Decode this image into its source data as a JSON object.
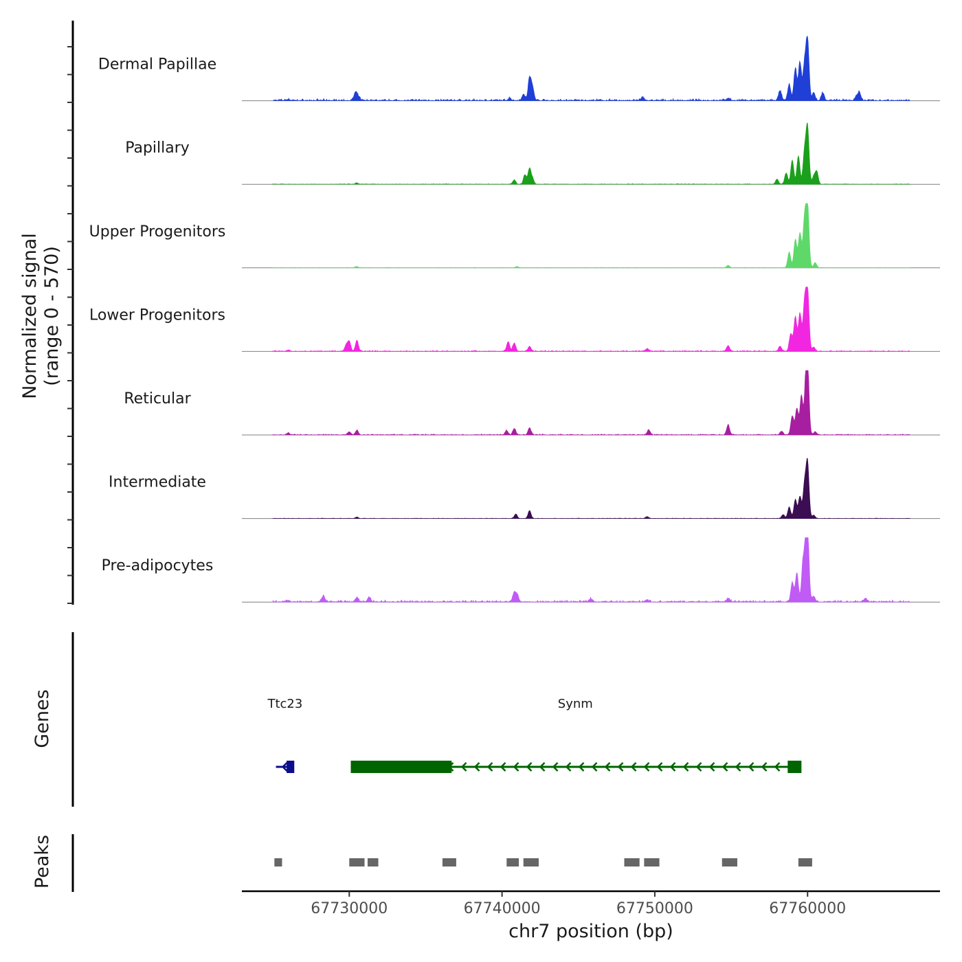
{
  "chart_data": {
    "type": "area",
    "title": "",
    "ylabel_lines": [
      "Normalized signal",
      "(range 0 - 570)"
    ],
    "signal_range": [
      0,
      570
    ],
    "xlabel": "chr7 position (bp)",
    "xlim": [
      67722970,
      67768670
    ],
    "x_ticks": [
      {
        "value": 67730000,
        "label": "67730000"
      },
      {
        "value": 67740000,
        "label": "67740000"
      },
      {
        "value": 67750000,
        "label": "67750000"
      },
      {
        "value": 67760000,
        "label": "67760000"
      }
    ],
    "tracks": [
      {
        "name": "Dermal Papillae",
        "color": "#1f3fd6",
        "peaks": [
          [
            67726000,
            0.02
          ],
          [
            67730400,
            0.12
          ],
          [
            67730600,
            0.06
          ],
          [
            67740500,
            0.04
          ],
          [
            67741400,
            0.1
          ],
          [
            67741800,
            0.35
          ],
          [
            67742000,
            0.2
          ],
          [
            67749200,
            0.05
          ],
          [
            67754800,
            0.04
          ],
          [
            67758200,
            0.15
          ],
          [
            67758800,
            0.26
          ],
          [
            67759200,
            0.5
          ],
          [
            67759500,
            0.6
          ],
          [
            67759800,
            0.55
          ],
          [
            67760000,
            0.97
          ],
          [
            67760400,
            0.12
          ],
          [
            67761000,
            0.12
          ],
          [
            67763200,
            0.07
          ],
          [
            67763400,
            0.12
          ]
        ],
        "noise": 0.035
      },
      {
        "name": "Papillary",
        "color": "#1aa01a",
        "peaks": [
          [
            67730500,
            0.02
          ],
          [
            67740800,
            0.07
          ],
          [
            67741500,
            0.15
          ],
          [
            67741800,
            0.25
          ],
          [
            67742000,
            0.08
          ],
          [
            67758000,
            0.08
          ],
          [
            67758600,
            0.18
          ],
          [
            67759000,
            0.38
          ],
          [
            67759400,
            0.45
          ],
          [
            67759800,
            0.5
          ],
          [
            67760000,
            0.9
          ],
          [
            67760400,
            0.12
          ],
          [
            67760600,
            0.2
          ]
        ],
        "noise": 0.012
      },
      {
        "name": "Upper Progenitors",
        "color": "#5fd86a",
        "peaks": [
          [
            67730500,
            0.02
          ],
          [
            67741000,
            0.02
          ],
          [
            67754800,
            0.04
          ],
          [
            67758800,
            0.25
          ],
          [
            67759200,
            0.45
          ],
          [
            67759500,
            0.55
          ],
          [
            67759800,
            0.75
          ],
          [
            67760000,
            1.0
          ],
          [
            67760500,
            0.08
          ]
        ],
        "noise": 0.01
      },
      {
        "name": "Lower Progenitors",
        "color": "#f226e0",
        "peaks": [
          [
            67726000,
            0.02
          ],
          [
            67729800,
            0.1
          ],
          [
            67730000,
            0.15
          ],
          [
            67730500,
            0.17
          ],
          [
            67740400,
            0.15
          ],
          [
            67740800,
            0.13
          ],
          [
            67741800,
            0.08
          ],
          [
            67749500,
            0.04
          ],
          [
            67754800,
            0.09
          ],
          [
            67758200,
            0.08
          ],
          [
            67758900,
            0.28
          ],
          [
            67759200,
            0.55
          ],
          [
            67759500,
            0.6
          ],
          [
            67759800,
            0.75
          ],
          [
            67760000,
            0.98
          ],
          [
            67760400,
            0.07
          ]
        ],
        "noise": 0.02
      },
      {
        "name": "Reticular",
        "color": "#a81ea0",
        "peaks": [
          [
            67726000,
            0.03
          ],
          [
            67730000,
            0.05
          ],
          [
            67730500,
            0.07
          ],
          [
            67740300,
            0.07
          ],
          [
            67740800,
            0.1
          ],
          [
            67741800,
            0.11
          ],
          [
            67749600,
            0.08
          ],
          [
            67754800,
            0.16
          ],
          [
            67758300,
            0.06
          ],
          [
            67759000,
            0.3
          ],
          [
            67759300,
            0.42
          ],
          [
            67759600,
            0.62
          ],
          [
            67759900,
            0.75
          ],
          [
            67760000,
            0.98
          ],
          [
            67760500,
            0.05
          ]
        ],
        "noise": 0.018
      },
      {
        "name": "Intermediate",
        "color": "#3b0d52",
        "peaks": [
          [
            67730500,
            0.02
          ],
          [
            67740900,
            0.07
          ],
          [
            67741800,
            0.12
          ],
          [
            67749500,
            0.03
          ],
          [
            67758400,
            0.06
          ],
          [
            67758800,
            0.18
          ],
          [
            67759200,
            0.3
          ],
          [
            67759500,
            0.35
          ],
          [
            67759800,
            0.52
          ],
          [
            67760000,
            0.88
          ],
          [
            67760400,
            0.05
          ]
        ],
        "noise": 0.01
      },
      {
        "name": "Pre-adipocytes",
        "color": "#c05bf5",
        "peaks": [
          [
            67726000,
            0.02
          ],
          [
            67728300,
            0.1
          ],
          [
            67730500,
            0.07
          ],
          [
            67731300,
            0.08
          ],
          [
            67740800,
            0.15
          ],
          [
            67741000,
            0.1
          ],
          [
            67745800,
            0.05
          ],
          [
            67749500,
            0.04
          ],
          [
            67754800,
            0.06
          ],
          [
            67759000,
            0.3
          ],
          [
            67759300,
            0.45
          ],
          [
            67759700,
            0.6
          ],
          [
            67759900,
            0.7
          ],
          [
            67760000,
            1.0
          ],
          [
            67760400,
            0.08
          ],
          [
            67763800,
            0.06
          ]
        ],
        "noise": 0.035
      }
    ],
    "genes": [
      {
        "name": "Ttc23",
        "color": "#0d0d8c",
        "strand": "-",
        "start": 67725200,
        "end": 67726300,
        "label_pos": 67725800,
        "exons": [
          [
            67726100,
            67726400
          ],
          [
            67725900,
            67726150
          ]
        ]
      },
      {
        "name": "Synm",
        "color": "#006400",
        "strand": "-",
        "start": 67730100,
        "end": 67759500,
        "label_pos": 67744800,
        "exons": [
          [
            67730100,
            67736700
          ],
          [
            67758700,
            67759600
          ]
        ]
      }
    ],
    "genes_axis_label": "Genes",
    "peaks_axis_label": "Peaks",
    "peak_regions": [
      [
        67725100,
        67725600
      ],
      [
        67730000,
        67731000
      ],
      [
        67731200,
        67731900
      ],
      [
        67736100,
        67737000
      ],
      [
        67740300,
        67741100
      ],
      [
        67741400,
        67742400
      ],
      [
        67748000,
        67749000
      ],
      [
        67749300,
        67750300
      ],
      [
        67754400,
        67755400
      ],
      [
        67759400,
        67760300
      ]
    ],
    "peak_color": "#666666"
  }
}
